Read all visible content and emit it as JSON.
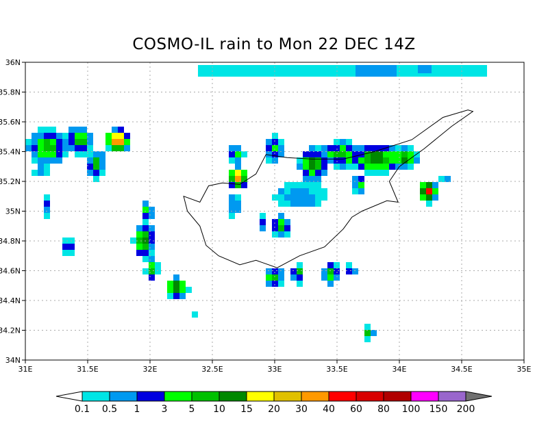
{
  "title": "COSMO-IL rain to Mon 22 DEC 14Z",
  "map": {
    "lon_range": [
      31,
      35
    ],
    "lat_range": [
      34,
      36
    ],
    "grid": "dotted",
    "x_ticks": [
      "31E",
      "31.5E",
      "32E",
      "32.5E",
      "33E",
      "33.5E",
      "34E",
      "34.5E",
      "35E"
    ],
    "y_ticks": [
      "34N",
      "34.2N",
      "34.4N",
      "34.6N",
      "34.8N",
      "35N",
      "35.2N",
      "35.4N",
      "35.6N",
      "35.8N",
      "36N"
    ],
    "coastline": "Cyprus"
  },
  "colorbar": {
    "labels": [
      "0.1",
      "0.5",
      "1",
      "3",
      "5",
      "10",
      "15",
      "20",
      "30",
      "40",
      "60",
      "80",
      "100",
      "150",
      "200"
    ],
    "colors": [
      "#00e5e5",
      "#0099f0",
      "#0000e0",
      "#00ff00",
      "#00c000",
      "#008800",
      "#ffff00",
      "#e0c000",
      "#ff9900",
      "#ff0000",
      "#d80000",
      "#b00000",
      "#ff00ff",
      "#9966cc"
    ],
    "under_color": "#ffffff",
    "over_color": "#707070"
  }
}
